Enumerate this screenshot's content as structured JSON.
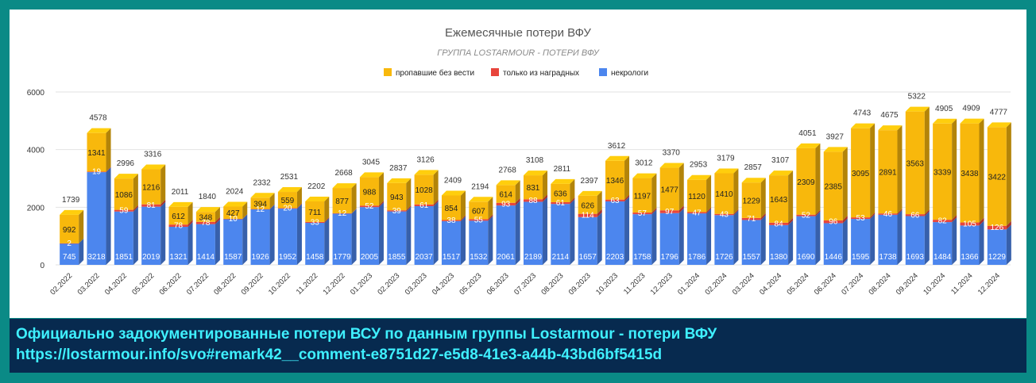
{
  "chart_data": {
    "type": "bar",
    "stacked": true,
    "style": "3d",
    "title": "Ежемесячные потери ВФУ",
    "subtitle": "ГРУППА LOSTARMOUR - ПОТЕРИ ВФУ",
    "legend_position": "top-center",
    "ylim": [
      0,
      6000
    ],
    "yticks": [
      0,
      2000,
      4000,
      6000
    ],
    "grid": true,
    "categories": [
      "02.2022",
      "03.2022",
      "04.2022",
      "05.2022",
      "06.2022",
      "07.2022",
      "08.2022",
      "09.2022",
      "10.2022",
      "11.2022",
      "12.2022",
      "01.2023",
      "02.2023",
      "03.2023",
      "04.2023",
      "05.2023",
      "06.2023",
      "07.2023",
      "08.2023",
      "09.2023",
      "10.2023",
      "11.2023",
      "12.2023",
      "01.2024",
      "02.2024",
      "03.2024",
      "04.2024",
      "05.2024",
      "06.2024",
      "07.2024",
      "08.2024",
      "09.2024",
      "10.2024",
      "11.2024",
      "12.2024"
    ],
    "series": [
      {
        "name": "некрологи",
        "color": "#4c86ee",
        "values": [
          745,
          3218,
          1851,
          2019,
          1321,
          1414,
          1587,
          1926,
          1952,
          1458,
          1779,
          2005,
          1855,
          2037,
          1517,
          1532,
          2061,
          2189,
          2114,
          1657,
          2203,
          1758,
          1796,
          1786,
          1726,
          1557,
          1380,
          1690,
          1446,
          1595,
          1738,
          1693,
          1484,
          1366,
          1229
        ]
      },
      {
        "name": "только из наградных",
        "color": "#e8453c",
        "values": [
          2,
          19,
          59,
          81,
          78,
          78,
          10,
          12,
          20,
          33,
          12,
          52,
          39,
          61,
          38,
          55,
          93,
          88,
          61,
          114,
          63,
          57,
          97,
          47,
          43,
          71,
          84,
          52,
          96,
          53,
          46,
          66,
          82,
          105,
          126
        ]
      },
      {
        "name": "пропавшие без вести",
        "color": "#f8b80c",
        "values": [
          992,
          1341,
          1086,
          1216,
          612,
          348,
          427,
          394,
          559,
          711,
          877,
          988,
          943,
          1028,
          854,
          607,
          614,
          831,
          636,
          626,
          1346,
          1197,
          1477,
          1120,
          1410,
          1229,
          1643,
          2309,
          2385,
          3095,
          2891,
          3563,
          3339,
          3438,
          3422
        ]
      }
    ],
    "totals": [
      1739,
      4578,
      2996,
      3316,
      2011,
      1840,
      2024,
      2332,
      2531,
      2202,
      2668,
      3045,
      2837,
      3126,
      2409,
      2194,
      2768,
      3108,
      2811,
      2397,
      3612,
      3012,
      3370,
      2953,
      3179,
      2857,
      3107,
      4051,
      3927,
      4743,
      4675,
      5322,
      4905,
      4909,
      4777
    ]
  },
  "caption": {
    "line1": "Официально задокументированные потери ВСУ по данным группы Lostarmour - потери ВФУ",
    "line2": " https://lostarmour.info/svo#remark42__comment-e8751d27-e5d8-41e3-a44b-43bd6bf5415d"
  }
}
